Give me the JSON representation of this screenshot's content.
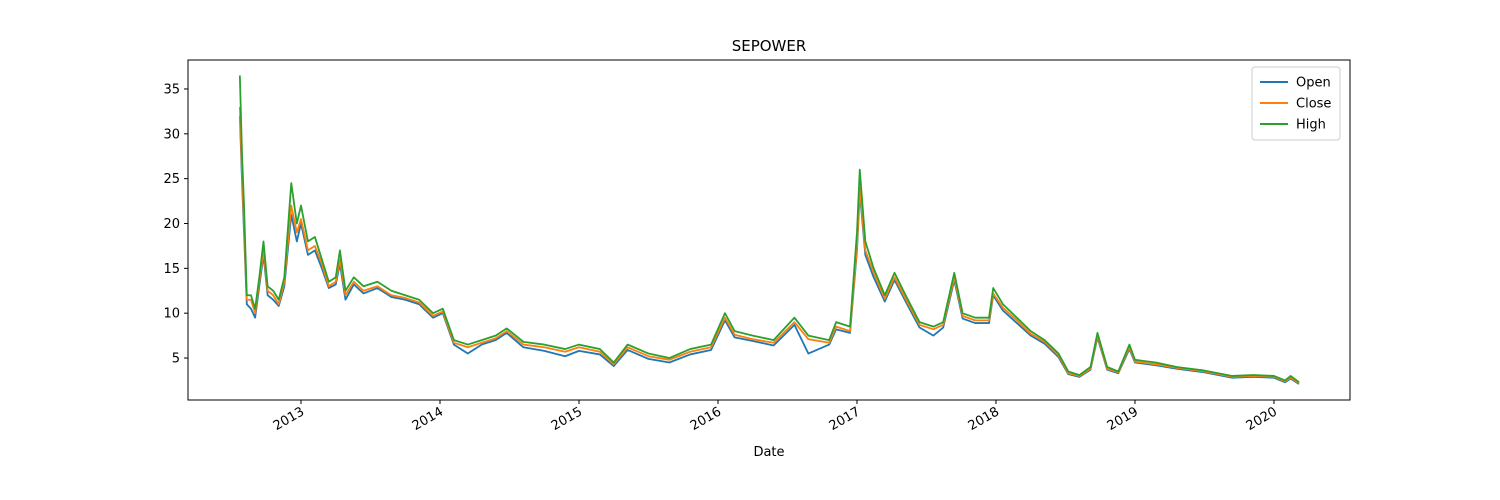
{
  "chart_data": {
    "type": "line",
    "title": "SEPOWER",
    "xlabel": "Date",
    "x": [
      2012.56,
      2012.575,
      2012.59,
      2012.61,
      2012.64,
      2012.67,
      2012.7,
      2012.73,
      2012.76,
      2012.8,
      2012.84,
      2012.88,
      2012.93,
      2012.97,
      2013.0,
      2013.05,
      2013.1,
      2013.15,
      2013.2,
      2013.25,
      2013.28,
      2013.32,
      2013.38,
      2013.45,
      2013.55,
      2013.65,
      2013.75,
      2013.85,
      2013.95,
      2014.02,
      2014.1,
      2014.2,
      2014.3,
      2014.4,
      2014.48,
      2014.6,
      2014.75,
      2014.9,
      2015.0,
      2015.15,
      2015.25,
      2015.35,
      2015.5,
      2015.65,
      2015.8,
      2015.95,
      2016.05,
      2016.12,
      2016.25,
      2016.4,
      2016.55,
      2016.65,
      2016.8,
      2016.85,
      2016.95,
      2017.0,
      2017.02,
      2017.06,
      2017.12,
      2017.2,
      2017.27,
      2017.35,
      2017.45,
      2017.55,
      2017.62,
      2017.7,
      2017.76,
      2017.85,
      2017.95,
      2017.98,
      2018.05,
      2018.15,
      2018.25,
      2018.35,
      2018.45,
      2018.52,
      2018.6,
      2018.68,
      2018.73,
      2018.8,
      2018.88,
      2018.96,
      2019.0,
      2019.15,
      2019.3,
      2019.5,
      2019.7,
      2019.85,
      2020.0,
      2020.08,
      2020.12,
      2020.18
    ],
    "series": [
      {
        "name": "Open",
        "color": "#1f77b4",
        "values": [
          32,
          25,
          19,
          11,
          10.5,
          9.5,
          13,
          16.5,
          12,
          11.5,
          10.8,
          13,
          21,
          18,
          20,
          16.5,
          17,
          15,
          12.8,
          13.2,
          15.5,
          11.5,
          13.2,
          12.2,
          12.8,
          11.8,
          11.5,
          11,
          9.5,
          10,
          6.5,
          5.5,
          6.5,
          7,
          7.8,
          6.2,
          5.8,
          5.2,
          5.8,
          5.4,
          4.1,
          5.9,
          4.9,
          4.5,
          5.4,
          5.9,
          9.2,
          7.3,
          6.9,
          6.4,
          8.7,
          5.5,
          6.5,
          8.2,
          7.8,
          17,
          23.5,
          16.5,
          14,
          11.3,
          13.7,
          11.3,
          8.4,
          7.5,
          8.4,
          13.7,
          9.4,
          8.9,
          8.9,
          12,
          10.3,
          8.9,
          7.5,
          6.6,
          5.1,
          3.2,
          2.9,
          3.7,
          7.3,
          3.7,
          3.3,
          6,
          4.5,
          4.2,
          3.8,
          3.4,
          2.8,
          2.9,
          2.8,
          2.3,
          2.7,
          2.1
        ]
      },
      {
        "name": "Close",
        "color": "#ff7f0e",
        "values": [
          33,
          26,
          20,
          11.5,
          11.5,
          10,
          13.5,
          17,
          12.5,
          12,
          11,
          13.5,
          22,
          19,
          20.5,
          17,
          17.5,
          15.5,
          13,
          13.5,
          16,
          12,
          13.5,
          12.5,
          13,
          12,
          11.7,
          11.2,
          9.7,
          10.2,
          6.7,
          6.2,
          6.7,
          7.2,
          8,
          6.5,
          6.2,
          5.7,
          6.2,
          5.7,
          4.3,
          6.2,
          5.2,
          4.8,
          5.7,
          6.2,
          9.5,
          7.6,
          7.1,
          6.7,
          9,
          7.1,
          6.7,
          8.5,
          8,
          17.5,
          24,
          17,
          14.5,
          11.6,
          14,
          11.6,
          8.7,
          8.2,
          8.7,
          14,
          9.7,
          9.2,
          9.2,
          12.2,
          10.6,
          9.2,
          7.7,
          6.8,
          5.3,
          3.3,
          3,
          3.8,
          7.5,
          3.8,
          3.4,
          6.2,
          4.6,
          4.3,
          3.9,
          3.5,
          2.9,
          3,
          2.9,
          2.4,
          2.8,
          2.2
        ]
      },
      {
        "name": "High",
        "color": "#2ca02c",
        "values": [
          36.5,
          28,
          22,
          12,
          12,
          10.5,
          14,
          18,
          13,
          12.5,
          11.5,
          14,
          24.5,
          20,
          22,
          18,
          18.5,
          16,
          13.5,
          14,
          17,
          12.5,
          14,
          13,
          13.5,
          12.5,
          12,
          11.5,
          10,
          10.5,
          7,
          6.5,
          7,
          7.5,
          8.3,
          6.8,
          6.5,
          6,
          6.5,
          6,
          4.5,
          6.5,
          5.5,
          5,
          6,
          6.5,
          10,
          8,
          7.5,
          7,
          9.5,
          7.5,
          7,
          9,
          8.5,
          19,
          26,
          18,
          15,
          12,
          14.5,
          12,
          9,
          8.5,
          9,
          14.5,
          10,
          9.5,
          9.5,
          12.8,
          11,
          9.5,
          8,
          7,
          5.5,
          3.5,
          3.1,
          4,
          7.8,
          4,
          3.5,
          6.5,
          4.8,
          4.5,
          4,
          3.6,
          3,
          3.1,
          3,
          2.5,
          3,
          2.3
        ]
      }
    ],
    "xlim": [
      2012.187,
      2020.547
    ],
    "xticks": [
      2013,
      2014,
      2015,
      2016,
      2017,
      2018,
      2019,
      2020
    ],
    "ylim": [
      0.32,
      38.23
    ],
    "yticks": [
      5,
      10,
      15,
      20,
      25,
      30,
      35
    ],
    "legend": "upper right",
    "grid": false
  }
}
